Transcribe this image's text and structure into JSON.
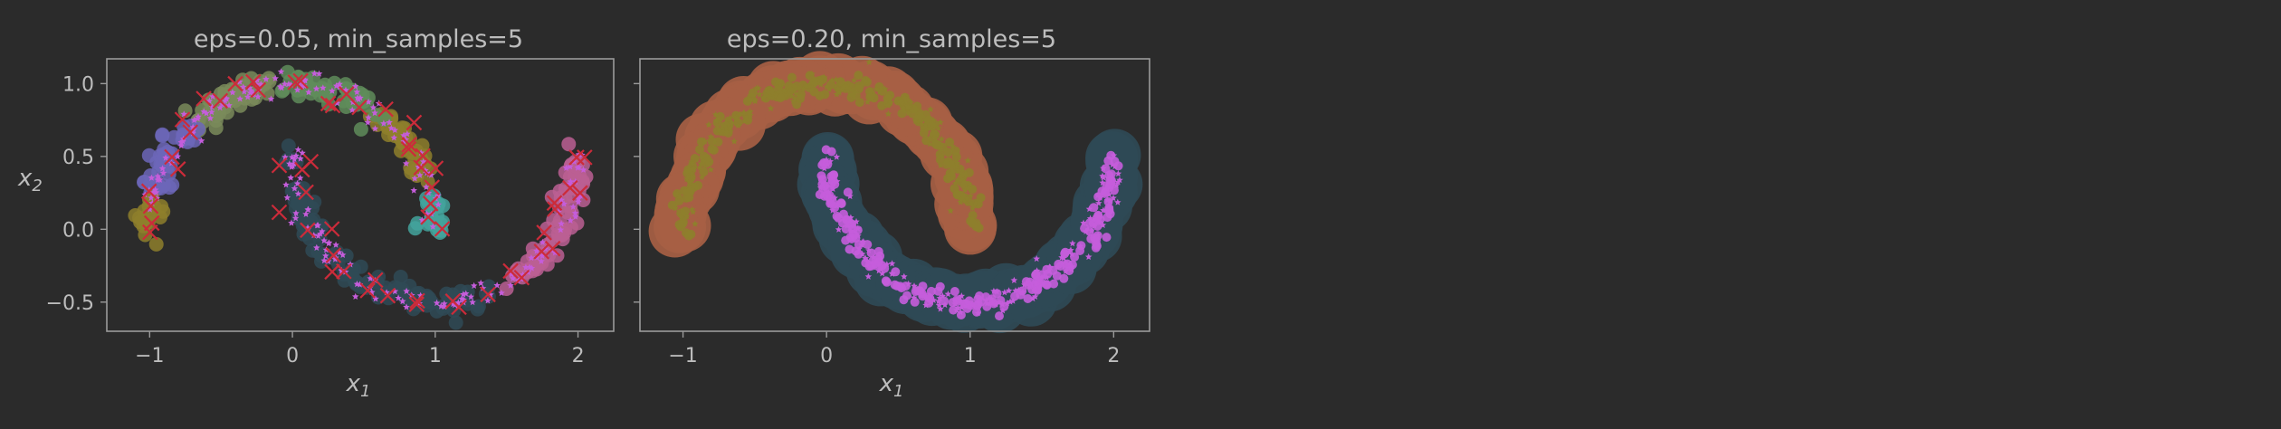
{
  "colors": {
    "background": "#2b2b2b",
    "frame": "#9a9a9a",
    "text": "#bdbdbd",
    "core_point": "#c55ddb",
    "anomaly": "#cc2b3a",
    "cluster_palette": [
      "#8e7f2c",
      "#5f8c5a",
      "#43a39c",
      "#6c66b8",
      "#9a7ab8",
      "#a75f44",
      "#2f4a56",
      "#7a8b5a",
      "#bb5f93"
    ]
  },
  "chart_data": [
    {
      "type": "scatter",
      "title": "eps=0.05, min_samples=5",
      "xlabel": "x",
      "xlabel_subscript": "1",
      "ylabel": "x",
      "ylabel_subscript": "2",
      "xlim": [
        -1.3,
        2.25
      ],
      "ylim": [
        -0.7,
        1.17
      ],
      "xticks": [
        -1,
        0,
        1,
        2
      ],
      "xtick_labels": [
        "−1",
        "0",
        "1",
        "2"
      ],
      "yticks": [
        -0.5,
        0.0,
        0.5,
        1.0
      ],
      "ytick_labels": [
        "−0.5",
        "0.0",
        "0.5",
        "1.0"
      ],
      "grid": false,
      "legend": false,
      "data_shape": "two interleaving half-moon clusters",
      "upper_moon": {
        "x_range": [
          -1.0,
          1.0
        ],
        "y_range": [
          0.0,
          1.0
        ]
      },
      "lower_moon": {
        "x_range": [
          0.0,
          2.0
        ],
        "y_range": [
          -0.5,
          0.5
        ]
      },
      "approx_clusters": 7,
      "anomaly_marker": "x",
      "cluster_arcs": [
        {
          "moon": "upper",
          "theta": [
            0,
            13
          ],
          "color_index": 2
        },
        {
          "moon": "upper",
          "theta": [
            20,
            52
          ],
          "color_index": 0
        },
        {
          "moon": "upper",
          "theta": [
            56,
            92
          ],
          "color_index": 1
        },
        {
          "moon": "upper",
          "theta": [
            96,
            132
          ],
          "color_index": 7
        },
        {
          "moon": "upper",
          "theta": [
            136,
            168
          ],
          "color_index": 3
        },
        {
          "moon": "upper",
          "theta": [
            170,
            180
          ],
          "color_index": 0
        },
        {
          "moon": "lower",
          "theta": [
            0,
            110
          ],
          "color_index": 6
        },
        {
          "moon": "lower",
          "theta": [
            118,
            180
          ],
          "color_index": 8
        }
      ]
    },
    {
      "type": "scatter",
      "title": "eps=0.20, min_samples=5",
      "xlabel": "x",
      "xlabel_subscript": "1",
      "xlim": [
        -1.3,
        2.25
      ],
      "ylim": [
        -0.7,
        1.17
      ],
      "xticks": [
        -1,
        0,
        1,
        2
      ],
      "xtick_labels": [
        "−1",
        "0",
        "1",
        "2"
      ],
      "yticks": [
        -0.5,
        0.0,
        0.5,
        1.0
      ],
      "ytick_labels": [
        "",
        "",
        "",
        ""
      ],
      "grid": false,
      "legend": false,
      "data_shape": "two interleaving half-moon clusters",
      "upper_moon": {
        "x_range": [
          -1.0,
          1.0
        ],
        "y_range": [
          0.0,
          1.0
        ]
      },
      "lower_moon": {
        "x_range": [
          0.0,
          2.0
        ],
        "y_range": [
          -0.5,
          0.5
        ]
      },
      "approx_clusters": 2,
      "cluster_colors": [
        "#a75f44",
        "#2f4a56"
      ],
      "inner_colors": [
        "#8e7f2c",
        "#c55ddb"
      ]
    }
  ]
}
